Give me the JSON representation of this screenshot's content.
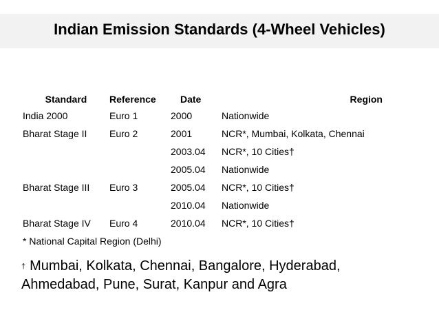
{
  "title": "Indian Emission Standards (4-Wheel Vehicles)",
  "table": {
    "headers": {
      "standard": "Standard",
      "reference": "Reference",
      "date": "Date",
      "region": "Region"
    },
    "rows": [
      {
        "standard": "India 2000",
        "reference": "Euro 1",
        "date": "2000",
        "region": "Nationwide"
      },
      {
        "standard": "Bharat Stage II",
        "reference": "Euro 2",
        "date": "2001",
        "region": "NCR*, Mumbai, Kolkata, Chennai"
      },
      {
        "standard": "",
        "reference": "",
        "date": "2003.04",
        "region": "NCR*, 10 Cities†"
      },
      {
        "standard": "",
        "reference": "",
        "date": "2005.04",
        "region": "Nationwide"
      },
      {
        "standard": "Bharat Stage III",
        "reference": "Euro 3",
        "date": "2005.04",
        "region": "NCR*, 10 Cities†"
      },
      {
        "standard": "",
        "reference": "",
        "date": "2010.04",
        "region": "Nationwide"
      },
      {
        "standard": "Bharat Stage IV",
        "reference": "Euro 4",
        "date": "2010.04",
        "region": "NCR*, 10 Cities†"
      }
    ]
  },
  "footnote_ncr": "* National Capital Region (Delhi)",
  "footnote_cities": {
    "mark": "†",
    "text": "Mumbai, Kolkata, Chennai, Bangalore, Hyderabad, Ahmedabad, Pune, Surat, Kanpur and Agra"
  }
}
